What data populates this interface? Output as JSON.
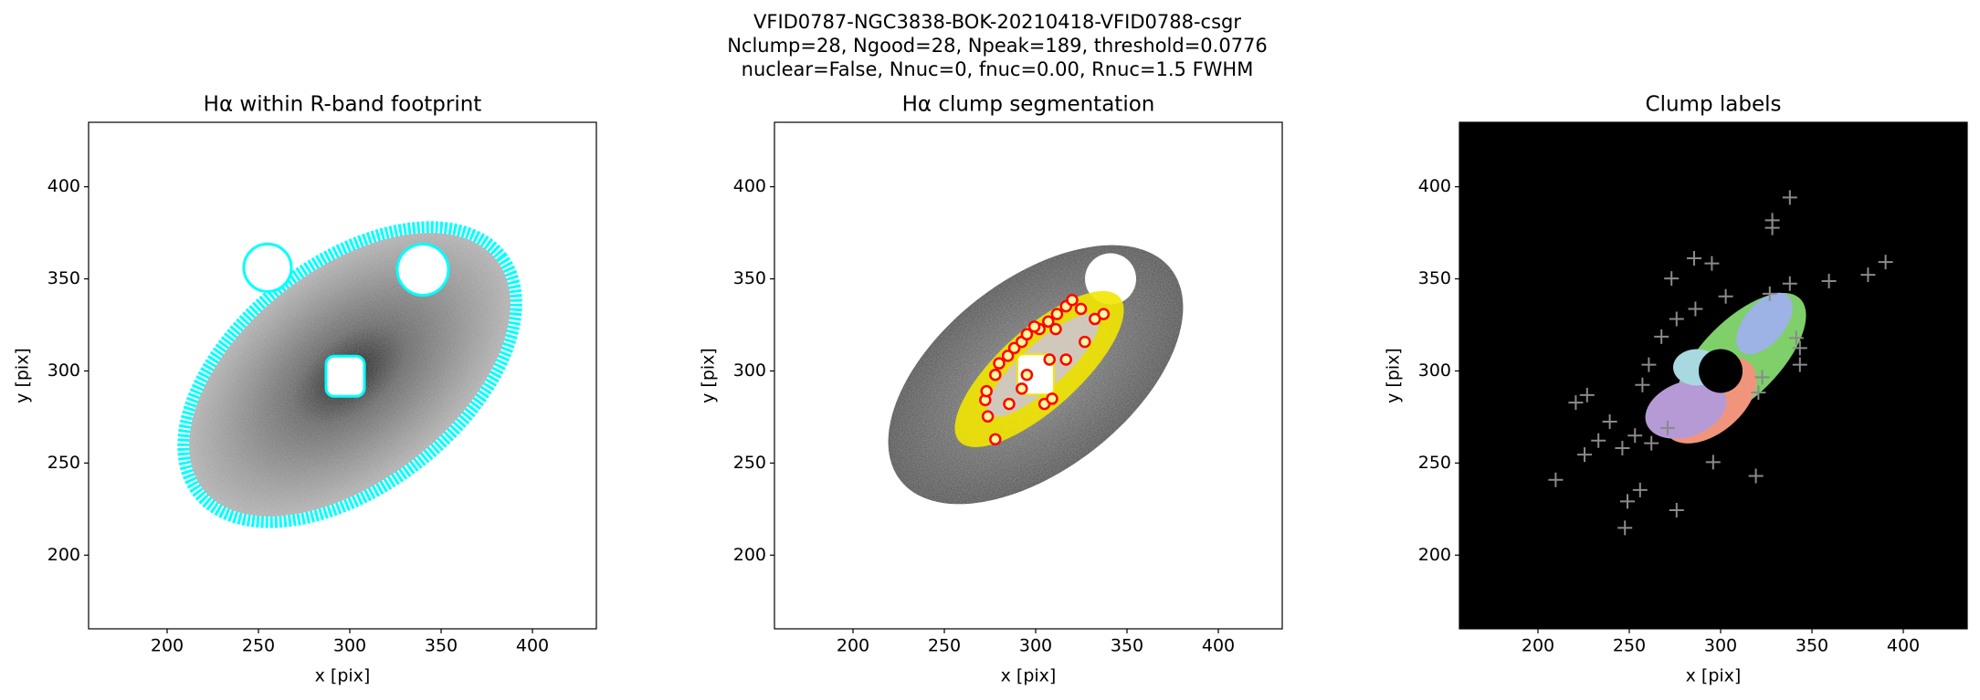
{
  "suptitle": [
    "VFID0787-NGC3838-BOK-20210418-VFID0788-csgr",
    "Nclump=28, Ngood=28, Npeak=189, threshold=0.0776",
    "nuclear=False, Nnuc=0, fnuc=0.00, Rnuc=1.5 FWHM"
  ],
  "chart_data": [
    {
      "type": "image",
      "title": "Hα within R-band footprint",
      "xlabel": "x [pix]",
      "ylabel": "y [pix]",
      "xlim": [
        157,
        435
      ],
      "ylim": [
        160,
        435
      ],
      "xticks": [
        200,
        250,
        300,
        350,
        400
      ],
      "yticks": [
        200,
        250,
        300,
        350,
        400
      ],
      "background": "#ffffff"
    },
    {
      "type": "image",
      "title": "Hα clump segmentation",
      "xlabel": "x [pix]",
      "ylabel": "y [pix]",
      "xlim": [
        157,
        435
      ],
      "ylim": [
        160,
        435
      ],
      "xticks": [
        200,
        250,
        300,
        350,
        400
      ],
      "yticks": [
        200,
        250,
        300,
        350,
        400
      ],
      "background": "#ffffff",
      "series": [
        {
          "color": "#ff0000",
          "marker": "o",
          "x": [
            277.9,
            273.8,
            272.4,
            273.1,
            277.9,
            280.0,
            284.8,
            288.3,
            292.4,
            295.2,
            302.1,
            306.9,
            311.7,
            316.6,
            320.0,
            324.8,
            332.4,
            337.2,
            326.9,
            316.6,
            307.6,
            295.2,
            292.4,
            285.5,
            304.8,
            309.0,
            299.3,
            311.0
          ],
          "y": [
            262.9,
            275.3,
            284.2,
            289.0,
            297.9,
            304.1,
            308.2,
            312.4,
            315.8,
            319.9,
            322.7,
            326.8,
            330.9,
            335.1,
            338.5,
            333.7,
            328.2,
            330.9,
            315.8,
            306.2,
            306.2,
            297.9,
            290.4,
            282.1,
            282.1,
            284.9,
            324.1,
            322.7
          ]
        }
      ]
    },
    {
      "type": "image",
      "title": "Clump labels",
      "xlabel": "x [pix]",
      "ylabel": "y [pix]",
      "xlim": [
        157,
        435
      ],
      "ylim": [
        160,
        435
      ],
      "xticks": [
        200,
        250,
        300,
        350,
        400
      ],
      "yticks": [
        200,
        250,
        300,
        350,
        400
      ],
      "background": "#000000",
      "series": [
        {
          "color": "#8a8a8a",
          "marker": "+",
          "x": [
            337.9,
            328.3,
            328.3,
            359.3,
            380.7,
            390.3,
            337.9,
            341.4,
            343.4,
            343.4,
            326.9,
            285.5,
            295.2,
            273.1,
            319.3,
            295.9,
            275.9,
            255.9,
            247.6,
            249.0,
            225.5,
            209.7,
            220.7,
            226.9,
            239.3,
            253.1,
            233.1,
            246.2,
            262.1,
            271.0,
            320.7,
            322.8,
            257.2,
            267.6,
            275.9,
            302.8,
            286.2,
            260.7
          ],
          "y": [
            394.2,
            381.8,
            377.7,
            348.8,
            352.2,
            359.1,
            347.4,
            317.9,
            312.4,
            303.4,
            341.9,
            361.2,
            358.4,
            350.2,
            243.0,
            250.5,
            224.4,
            235.4,
            214.8,
            229.2,
            254.6,
            240.9,
            282.8,
            286.9,
            272.5,
            264.9,
            262.2,
            258.1,
            260.8,
            269.1,
            288.3,
            296.6,
            292.4,
            318.6,
            328.2,
            340.5,
            333.7,
            303.4
          ]
        }
      ]
    }
  ]
}
